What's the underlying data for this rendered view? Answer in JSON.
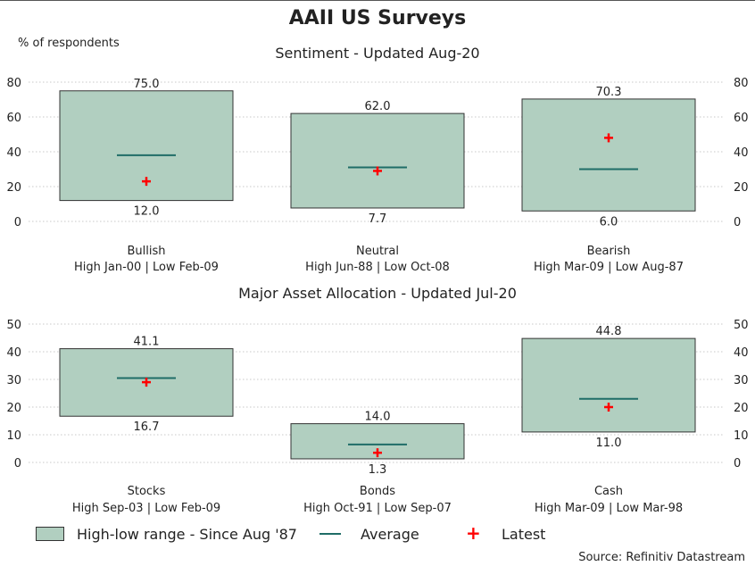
{
  "title": "AAII US Surveys",
  "ylabel": "% of respondents",
  "source": "Source: Refinitiv Datastream",
  "legend": {
    "range": "High-low range - Since Aug '87",
    "average": "Average",
    "latest": "Latest"
  },
  "colors": {
    "box_fill": "#b1cfc0",
    "box_stroke": "#333333",
    "average": "#1f6d67",
    "latest": "#ff0000",
    "grid": "#c8c8c8"
  },
  "chart_data": [
    {
      "type": "box",
      "title": "Sentiment - Updated Aug-20",
      "ylim": [
        0,
        80
      ],
      "yticks": [
        0,
        20,
        40,
        60,
        80
      ],
      "items": [
        {
          "name": "Bullish",
          "range_note": "High Jan-00 | Low Feb-09",
          "high": 75.0,
          "low": 12.0,
          "average": 38,
          "latest": 23,
          "high_label": "75.0",
          "low_label": "12.0"
        },
        {
          "name": "Neutral",
          "range_note": "High Jun-88 | Low Oct-08",
          "high": 62.0,
          "low": 7.7,
          "average": 31,
          "latest": 29,
          "high_label": "62.0",
          "low_label": "7.7"
        },
        {
          "name": "Bearish",
          "range_note": "High Mar-09 | Low Aug-87",
          "high": 70.3,
          "low": 6.0,
          "average": 30,
          "latest": 48,
          "high_label": "70.3",
          "low_label": "6.0"
        }
      ]
    },
    {
      "type": "box",
      "title": "Major Asset Allocation - Updated Jul-20",
      "ylim": [
        0,
        50
      ],
      "yticks": [
        0,
        10,
        20,
        30,
        40,
        50
      ],
      "items": [
        {
          "name": "Stocks",
          "range_note": "High Sep-03 | Low Feb-09",
          "high": 41.1,
          "low": 16.7,
          "average": 30.5,
          "latest": 29,
          "high_label": "41.1",
          "low_label": "16.7"
        },
        {
          "name": "Bonds",
          "range_note": "High Oct-91 | Low Sep-07",
          "high": 14.0,
          "low": 1.3,
          "average": 6.5,
          "latest": 3.5,
          "high_label": "14.0",
          "low_label": "1.3"
        },
        {
          "name": "Cash",
          "range_note": "High Mar-09 | Low Mar-98",
          "high": 44.8,
          "low": 11.0,
          "average": 23,
          "latest": 20,
          "high_label": "44.8",
          "low_label": "11.0"
        }
      ]
    }
  ]
}
